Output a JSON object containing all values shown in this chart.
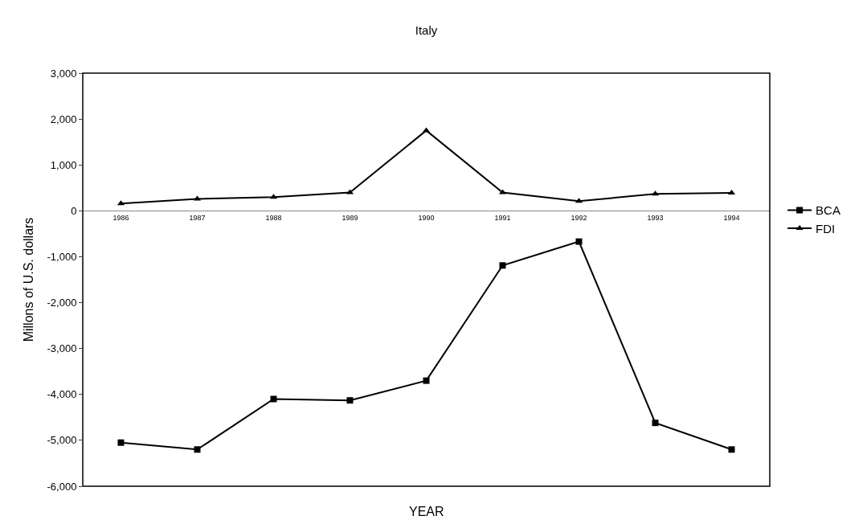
{
  "chart_data": {
    "type": "line",
    "title": "Italy",
    "xlabel": "YEAR",
    "ylabel": "Millons of U.S. dollars",
    "categories": [
      "1986",
      "1987",
      "1988",
      "1989",
      "1990",
      "1991",
      "1992",
      "1993",
      "1994"
    ],
    "series": [
      {
        "name": "BCA",
        "color": "#000000",
        "marker": "square",
        "values": [
          -5050,
          -5200,
          -4100,
          -4130,
          -3700,
          -1190,
          -670,
          -4620,
          -5200
        ]
      },
      {
        "name": "FDI",
        "color": "#000000",
        "marker": "triangle",
        "values": [
          160,
          260,
          300,
          400,
          1750,
          400,
          210,
          370,
          390
        ]
      }
    ],
    "ylim": [
      -6000,
      3000
    ],
    "yticks": [
      {
        "value": -6000,
        "label": "-6,000"
      },
      {
        "value": -5000,
        "label": "-5,000"
      },
      {
        "value": -4000,
        "label": "-4,000"
      },
      {
        "value": -3000,
        "label": "-3,000"
      },
      {
        "value": -2000,
        "label": "-2,000"
      },
      {
        "value": -1000,
        "label": "-1,000"
      },
      0,
      {
        "value": 1000,
        "label": "1,000"
      },
      {
        "value": 2000,
        "label": "2,000"
      },
      {
        "value": 3000,
        "label": "3,000"
      }
    ],
    "grid": false,
    "legend": "right",
    "line_style": "solid"
  }
}
